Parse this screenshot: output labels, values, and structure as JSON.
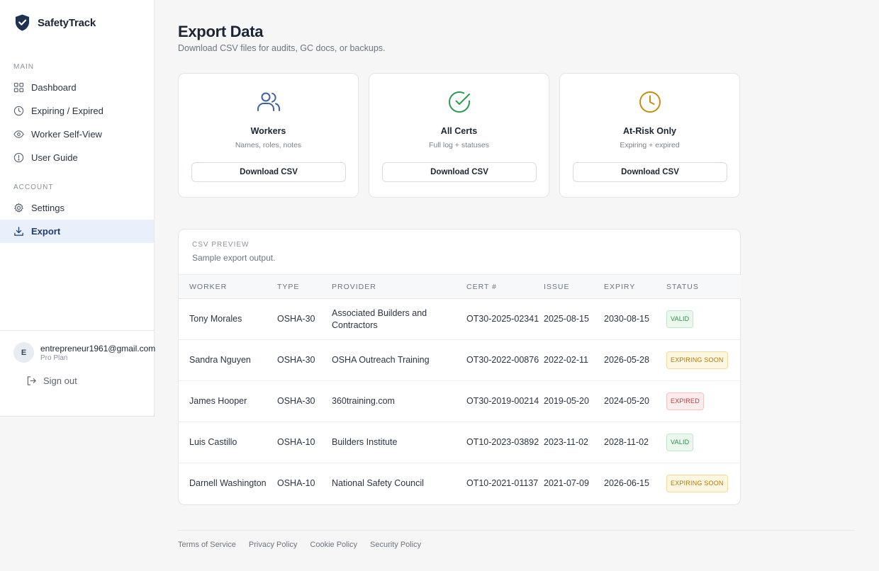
{
  "brand": {
    "name": "SafetyTrack"
  },
  "sidebar": {
    "main_label": "MAIN",
    "account_label": "ACCOUNT",
    "items": [
      {
        "label": "Dashboard",
        "icon": "grid-icon"
      },
      {
        "label": "Expiring / Expired",
        "icon": "clock-icon"
      },
      {
        "label": "Worker Self-View",
        "icon": "eye-icon"
      },
      {
        "label": "User Guide",
        "icon": "info-icon"
      },
      {
        "label": "Settings",
        "icon": "gear-icon"
      },
      {
        "label": "Export",
        "icon": "download-icon",
        "active": true
      }
    ],
    "user": {
      "initial": "E",
      "email": "entrepreneur1961@gmail.com",
      "plan": "Pro Plan"
    },
    "signout_label": "Sign out"
  },
  "page": {
    "title": "Export Data",
    "subtitle": "Download CSV files for audits, GC docs, or backups."
  },
  "cards": [
    {
      "title": "Workers",
      "desc": "Names, roles, notes",
      "button": "Download CSV",
      "icon": "users-icon",
      "color": "#3f5fa8"
    },
    {
      "title": "All Certs",
      "desc": "Full log + statuses",
      "button": "Download CSV",
      "icon": "check-circle-icon",
      "color": "#2f9a52"
    },
    {
      "title": "At-Risk Only",
      "desc": "Expiring + expired",
      "button": "Download CSV",
      "icon": "clock-icon",
      "color": "#c98d0c"
    }
  ],
  "preview": {
    "label": "CSV PREVIEW",
    "subtitle": "Sample export output.",
    "columns": [
      "WORKER",
      "TYPE",
      "PROVIDER",
      "CERT #",
      "ISSUE",
      "EXPIRY",
      "STATUS"
    ],
    "rows": [
      {
        "worker": "Tony Morales",
        "type": "OSHA-30",
        "provider": "Associated Builders and Contractors",
        "cert": "OT30-2025-02341",
        "issue": "2025-08-15",
        "expiry": "2030-08-15",
        "status": "VALID",
        "kind": "valid"
      },
      {
        "worker": "Sandra Nguyen",
        "type": "OSHA-30",
        "provider": "OSHA Outreach Training",
        "cert": "OT30-2022-00876",
        "issue": "2022-02-11",
        "expiry": "2026-05-28",
        "status": "EXPIRING SOON",
        "kind": "soon"
      },
      {
        "worker": "James Hooper",
        "type": "OSHA-30",
        "provider": "360training.com",
        "cert": "OT30-2019-00214",
        "issue": "2019-05-20",
        "expiry": "2024-05-20",
        "status": "EXPIRED",
        "kind": "expired"
      },
      {
        "worker": "Luis Castillo",
        "type": "OSHA-10",
        "provider": "Builders Institute",
        "cert": "OT10-2023-03892",
        "issue": "2023-11-02",
        "expiry": "2028-11-02",
        "status": "VALID",
        "kind": "valid"
      },
      {
        "worker": "Darnell Washington",
        "type": "OSHA-10",
        "provider": "National Safety Council",
        "cert": "OT10-2021-01137",
        "issue": "2021-07-09",
        "expiry": "2026-06-15",
        "status": "EXPIRING SOON",
        "kind": "soon"
      }
    ]
  },
  "footer": {
    "links": [
      "Terms of Service",
      "Privacy Policy",
      "Cookie Policy",
      "Security Policy"
    ]
  }
}
